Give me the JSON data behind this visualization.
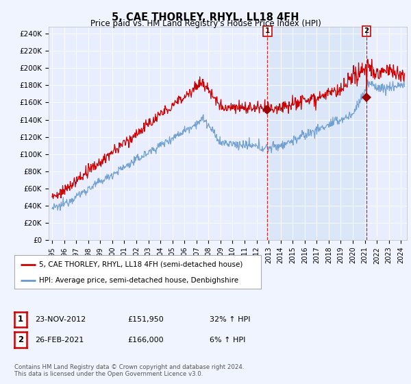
{
  "title": "5, CAE THORLEY, RHYL, LL18 4FH",
  "subtitle": "Price paid vs. HM Land Registry's House Price Index (HPI)",
  "ylabel_ticks": [
    "£0",
    "£20K",
    "£40K",
    "£60K",
    "£80K",
    "£100K",
    "£120K",
    "£140K",
    "£160K",
    "£180K",
    "£200K",
    "£220K",
    "£240K"
  ],
  "ytick_values": [
    0,
    20000,
    40000,
    60000,
    80000,
    100000,
    120000,
    140000,
    160000,
    180000,
    200000,
    220000,
    240000
  ],
  "ylim": [
    0,
    248000
  ],
  "xlim_start": 1994.7,
  "xlim_end": 2024.5,
  "red_line_color": "#cc0000",
  "blue_line_color": "#6699cc",
  "fill_color": "#ddeeff",
  "marker1_date": 2012.9,
  "marker1_value": 151950,
  "marker2_date": 2021.15,
  "marker2_value": 166000,
  "vline1_x": 2012.9,
  "vline2_x": 2021.15,
  "legend_label1": "5, CAE THORLEY, RHYL, LL18 4FH (semi-detached house)",
  "legend_label2": "HPI: Average price, semi-detached house, Denbighshire",
  "annotation1_date": "23-NOV-2012",
  "annotation1_price": "£151,950",
  "annotation1_hpi": "32% ↑ HPI",
  "annotation2_date": "26-FEB-2021",
  "annotation2_price": "£166,000",
  "annotation2_hpi": "6% ↑ HPI",
  "footer": "Contains HM Land Registry data © Crown copyright and database right 2024.\nThis data is licensed under the Open Government Licence v3.0.",
  "background_color": "#f0f4ff",
  "plot_bg_color": "#e8eeff"
}
